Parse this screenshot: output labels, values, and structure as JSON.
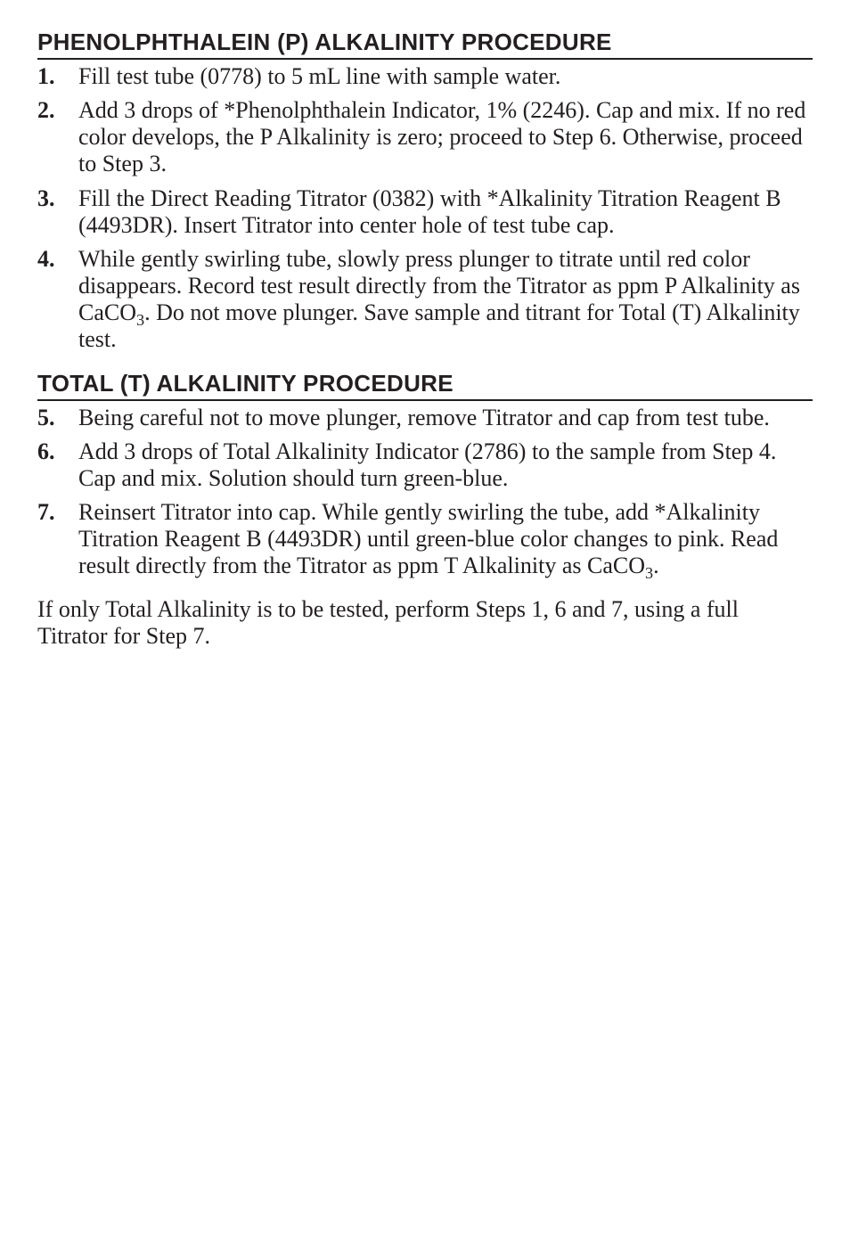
{
  "section1": {
    "heading": "PHENOLPHTHALEIN (P) ALKALINITY PROCEDURE",
    "items": [
      {
        "num": "1.",
        "text": "Fill test tube (0778) to 5 mL line with sample water."
      },
      {
        "num": "2.",
        "text": "Add 3 drops of *Phenolphthalein Indicator, 1% (2246). Cap and mix. If no red color develops, the P Alkalinity is zero; proceed to Step 6. Otherwise, proceed to Step 3."
      },
      {
        "num": "3.",
        "text": "Fill the Direct Reading Titrator (0382) with *Alkalinity Titration Reagent B (4493DR). Insert Titrator into center hole of test tube cap."
      },
      {
        "num": "4.",
        "text": "While gently swirling tube, slowly press plunger to titrate until red color disappears. Record test result directly from the Titrator as ppm P Alkalinity as CaCO3. Do not move plunger. Save sample and titrant for Total (T) Alkalinity test.",
        "hasSub": true
      }
    ]
  },
  "section2": {
    "heading": "TOTAL (T) ALKALINITY PROCEDURE",
    "items": [
      {
        "num": "5.",
        "text": "Being careful not to move plunger, remove Titrator and cap from test tube."
      },
      {
        "num": "6.",
        "text": "Add 3 drops of Total Alkalinity Indicator (2786) to the sample from Step 4. Cap and mix. Solution should turn green-blue."
      },
      {
        "num": "7.",
        "text": "Reinsert Titrator into cap. While gently swirling the tube, add *Alkalinity Titration Reagent B (4493DR) until green-blue color changes to pink. Read result directly from the Titrator as ppm T Alkalinity as CaCO3.",
        "hasSub": true
      }
    ]
  },
  "closing": "If only Total Alkalinity is to be tested, perform Steps 1, 6 and 7, using a full Titrator for Step 7."
}
